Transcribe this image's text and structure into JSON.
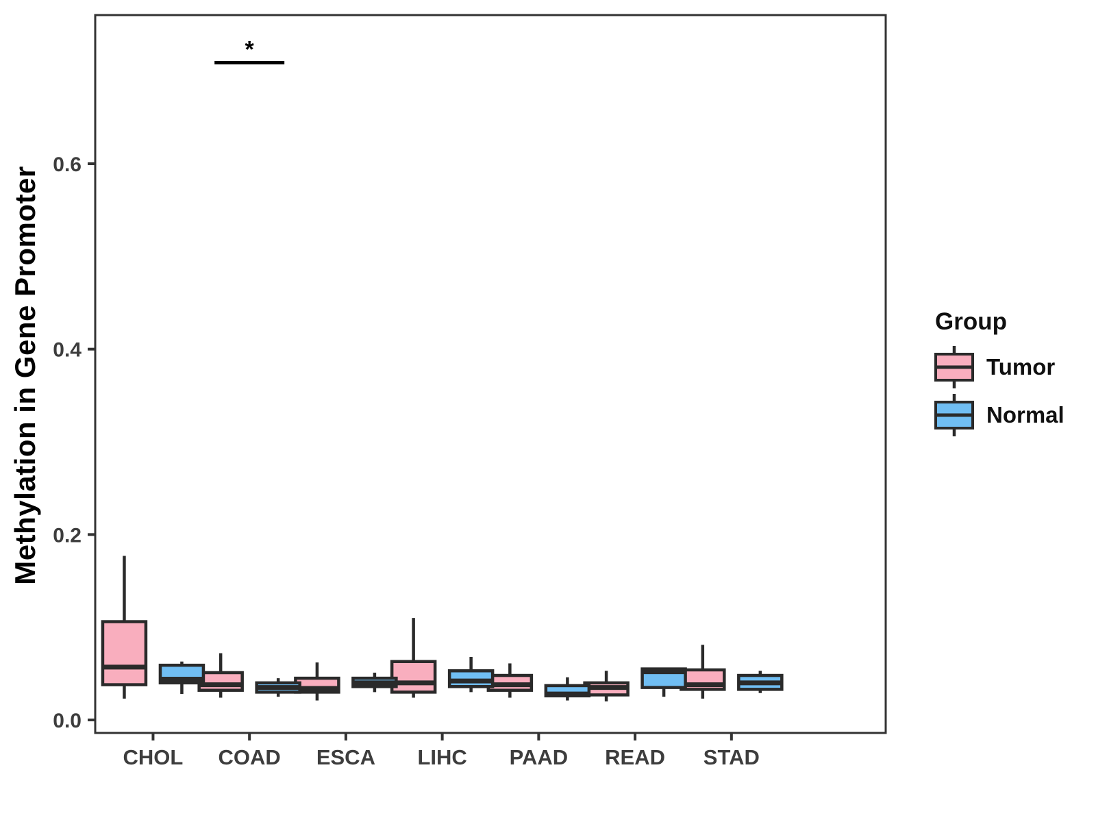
{
  "chart_data": {
    "type": "box",
    "title": "",
    "xlabel": "",
    "ylabel": "Methylation in Gene Promoter",
    "categories": [
      "CHOL",
      "COAD",
      "ESCA",
      "LIHC",
      "PAAD",
      "READ",
      "STAD"
    ],
    "yticks": [
      0.0,
      0.2,
      0.4,
      0.6
    ],
    "ytick_labels": [
      "0.0",
      "0.2",
      "0.4",
      "0.6"
    ],
    "ylim": [
      -0.015,
      0.76
    ],
    "grid": false,
    "legend": {
      "title": "Group",
      "position": "right",
      "entries": [
        {
          "label": "Tumor",
          "color": "#F9AEBE"
        },
        {
          "label": "Normal",
          "color": "#70BEF3"
        }
      ]
    },
    "series": [
      {
        "name": "Tumor",
        "color": "#F9AEBE",
        "boxes": [
          {
            "category": "CHOL",
            "whisker_low": 0.023,
            "q1": 0.038,
            "median": 0.057,
            "q3": 0.106,
            "whisker_high": 0.177
          },
          {
            "category": "COAD",
            "whisker_low": 0.024,
            "q1": 0.032,
            "median": 0.038,
            "q3": 0.051,
            "whisker_high": 0.072
          },
          {
            "category": "ESCA",
            "whisker_low": 0.021,
            "q1": 0.03,
            "median": 0.034,
            "q3": 0.045,
            "whisker_high": 0.062
          },
          {
            "category": "LIHC",
            "whisker_low": 0.024,
            "q1": 0.03,
            "median": 0.04,
            "q3": 0.063,
            "whisker_high": 0.11
          },
          {
            "category": "PAAD",
            "whisker_low": 0.024,
            "q1": 0.032,
            "median": 0.038,
            "q3": 0.048,
            "whisker_high": 0.061
          },
          {
            "category": "READ",
            "whisker_low": 0.02,
            "q1": 0.027,
            "median": 0.035,
            "q3": 0.04,
            "whisker_high": 0.053
          },
          {
            "category": "STAD",
            "whisker_low": 0.023,
            "q1": 0.033,
            "median": 0.038,
            "q3": 0.054,
            "whisker_high": 0.081
          }
        ]
      },
      {
        "name": "Normal",
        "color": "#70BEF3",
        "boxes": [
          {
            "category": "CHOL",
            "whisker_low": 0.028,
            "q1": 0.04,
            "median": 0.044,
            "q3": 0.059,
            "whisker_high": 0.063
          },
          {
            "category": "COAD",
            "whisker_low": 0.025,
            "q1": 0.03,
            "median": 0.035,
            "q3": 0.04,
            "whisker_high": 0.045
          },
          {
            "category": "ESCA",
            "whisker_low": 0.03,
            "q1": 0.036,
            "median": 0.04,
            "q3": 0.045,
            "whisker_high": 0.051
          },
          {
            "category": "LIHC",
            "whisker_low": 0.03,
            "q1": 0.036,
            "median": 0.042,
            "q3": 0.053,
            "whisker_high": 0.068
          },
          {
            "category": "PAAD",
            "whisker_low": 0.021,
            "q1": 0.026,
            "median": 0.028,
            "q3": 0.037,
            "whisker_high": 0.046
          },
          {
            "category": "READ",
            "whisker_low": 0.025,
            "q1": 0.035,
            "median": 0.052,
            "q3": 0.055,
            "whisker_high": 0.056
          },
          {
            "category": "STAD",
            "whisker_low": 0.029,
            "q1": 0.033,
            "median": 0.04,
            "q3": 0.048,
            "whisker_high": 0.053
          }
        ]
      }
    ],
    "annotations": [
      {
        "text": "*",
        "category": "COAD",
        "bar_y": 0.709
      }
    ],
    "style": {
      "background": "#FFFFFF",
      "box_outline": "#2A2A2A",
      "axis_color": "#333333",
      "tick_text_color": "#3D3D3D",
      "axis_title_color": "#000000",
      "annotation_color": "#000000"
    }
  }
}
